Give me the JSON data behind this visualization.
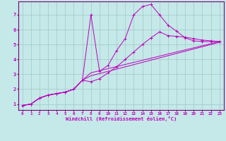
{
  "xlabel": "Windchill (Refroidissement éolien,°C)",
  "xlim": [
    -0.5,
    23.5
  ],
  "ylim": [
    0.6,
    7.9
  ],
  "bg_color": "#c5e8e8",
  "line_color": "#bb00bb",
  "grid_color": "#a0c8c8",
  "line1_x": [
    0,
    1,
    2,
    3,
    4,
    5,
    6,
    7,
    8,
    9,
    10,
    11,
    12,
    13,
    14,
    15,
    16,
    17,
    18,
    19,
    20,
    21,
    22,
    23
  ],
  "line1_y": [
    0.9,
    1.0,
    1.4,
    1.6,
    1.7,
    1.8,
    2.0,
    2.6,
    7.0,
    3.2,
    3.6,
    4.6,
    5.4,
    7.0,
    7.55,
    7.7,
    7.0,
    6.3,
    5.9,
    5.45,
    5.25,
    5.2,
    5.2,
    5.2
  ],
  "line2_x": [
    0,
    1,
    2,
    3,
    4,
    5,
    6,
    7,
    8,
    9,
    10,
    11,
    12,
    13,
    14,
    15,
    16,
    17,
    18,
    19,
    20,
    21,
    22,
    23
  ],
  "line2_y": [
    0.9,
    1.0,
    1.4,
    1.6,
    1.7,
    1.8,
    2.0,
    2.6,
    2.5,
    2.7,
    3.1,
    3.5,
    4.0,
    4.5,
    5.0,
    5.45,
    5.85,
    5.6,
    5.55,
    5.5,
    5.4,
    5.3,
    5.25,
    5.2
  ],
  "line3_x": [
    0,
    1,
    2,
    3,
    4,
    5,
    6,
    7,
    8,
    23
  ],
  "line3_y": [
    0.9,
    1.0,
    1.4,
    1.6,
    1.7,
    1.8,
    2.0,
    2.6,
    3.1,
    5.2
  ],
  "line4_x": [
    0,
    1,
    2,
    3,
    4,
    5,
    6,
    7,
    8,
    23
  ],
  "line4_y": [
    0.9,
    1.0,
    1.4,
    1.6,
    1.7,
    1.8,
    2.0,
    2.6,
    2.9,
    5.15
  ],
  "xticks": [
    0,
    1,
    2,
    3,
    4,
    5,
    6,
    7,
    8,
    9,
    10,
    11,
    12,
    13,
    14,
    15,
    16,
    17,
    18,
    19,
    20,
    21,
    22,
    23
  ],
  "yticks": [
    1,
    2,
    3,
    4,
    5,
    6,
    7
  ]
}
